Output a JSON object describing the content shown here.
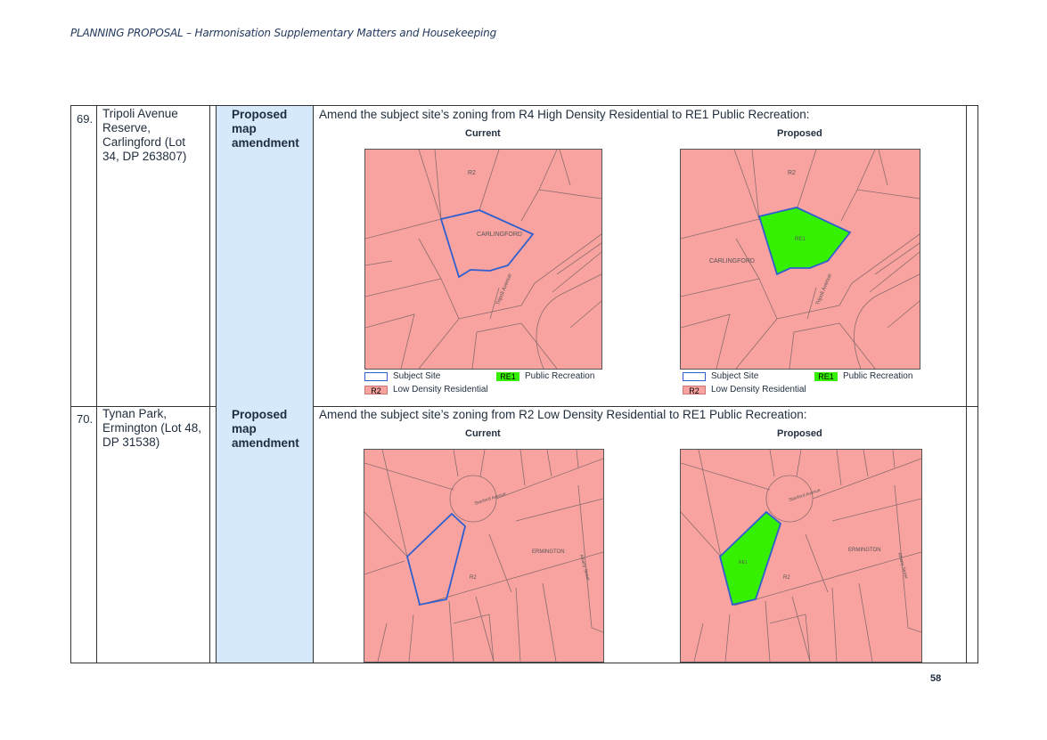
{
  "header": {
    "title": "PLANNING PROPOSAL – Harmonisation Supplementary Matters and Housekeeping"
  },
  "page_number": "58",
  "colors": {
    "r2": "#f9a3a0",
    "re1": "#35f000",
    "site": "#2e5fcf",
    "type_bg": "#d6e8fb"
  },
  "rows": [
    {
      "number": "69.",
      "site": "Tripoli Avenue Reserve, Carlingford (Lot 34, DP 263807)",
      "type": "Proposed map amendment",
      "description": "Amend the subject site’s zoning from R4 High Density Residential to RE1 Public Recreation:",
      "current_label": "Current",
      "proposed_label": "Proposed",
      "current_map": {
        "zone": "R2",
        "suburb": "CARLINGFORD",
        "street": "Tripoli Avenue"
      },
      "proposed_map": {
        "zone": "R2",
        "suburb": "CARLINGFORD",
        "street": "Tripoli Avenue",
        "site_zone": "RE1"
      }
    },
    {
      "number": "70.",
      "site": "Tynan Park, Ermington (Lot 48, DP 31538)",
      "type": "Proposed map amendment",
      "description": "Amend the subject site’s zoning from R2 Low Density Residential to RE1 Public Recreation:",
      "current_label": "Current",
      "proposed_label": "Proposed",
      "current_map": {
        "zone": "R2",
        "suburb": "ERMINGTON",
        "street": "Stanford Avenue",
        "street2": "Albany Street"
      },
      "proposed_map": {
        "zone": "R2",
        "suburb": "ERMINGTON",
        "street": "Stanford Avenue",
        "street2": "Albany Street",
        "site_zone": "RE1"
      }
    }
  ],
  "legend": {
    "subject_site": "Subject Site",
    "re1_code": "RE1",
    "re1_label": "Public Recreation",
    "r2_code": "R2",
    "r2_label": "Low Density Residential"
  }
}
